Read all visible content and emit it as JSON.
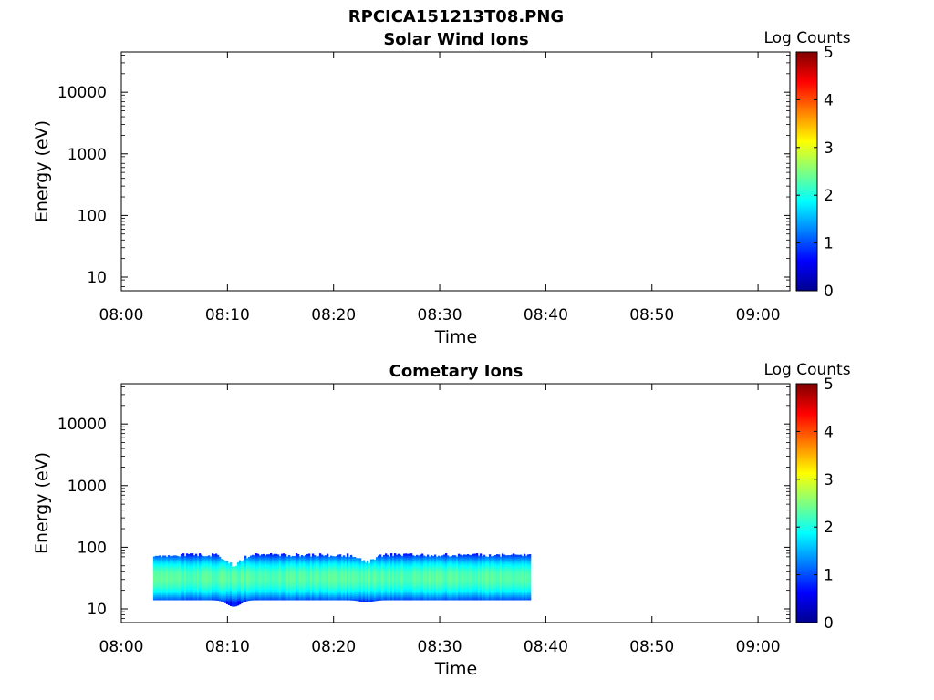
{
  "figure": {
    "title": "RPCICA151213T08.PNG"
  },
  "panels": [
    {
      "title": "Solar Wind Ions",
      "xlabel": "Time",
      "ylabel": "Energy (eV)",
      "colorbar_label": "Log Counts"
    },
    {
      "title": "Cometary Ions",
      "xlabel": "Time",
      "ylabel": "Energy (eV)",
      "colorbar_label": "Log Counts"
    }
  ],
  "chart_data": [
    {
      "type": "heatmap",
      "title": "Solar Wind Ions",
      "xlabel": "Time",
      "ylabel": "Energy (eV)",
      "x_ticks": [
        "08:00",
        "08:10",
        "08:20",
        "08:30",
        "08:40",
        "08:50",
        "09:00"
      ],
      "xlim": [
        "08:00",
        "09:03"
      ],
      "y_ticks": [
        10,
        100,
        1000,
        10000
      ],
      "y_tick_labels": [
        "10",
        "100",
        "1000",
        "10000"
      ],
      "ylim": [
        6,
        45000
      ],
      "yscale": "log",
      "colorbar": {
        "label": "Log Counts",
        "range": [
          0,
          5
        ],
        "ticks": [
          "0",
          "1",
          "2",
          "3",
          "4",
          "5"
        ],
        "colormap": "jet"
      },
      "data": []
    },
    {
      "type": "heatmap",
      "title": "Cometary Ions",
      "xlabel": "Time",
      "ylabel": "Energy (eV)",
      "x_ticks": [
        "08:00",
        "08:10",
        "08:20",
        "08:30",
        "08:40",
        "08:50",
        "09:00"
      ],
      "xlim": [
        "08:00",
        "09:03"
      ],
      "y_ticks": [
        10,
        100,
        1000,
        10000
      ],
      "y_tick_labels": [
        "10",
        "100",
        "1000",
        "10000"
      ],
      "ylim": [
        6,
        45000
      ],
      "yscale": "log",
      "colorbar": {
        "label": "Log Counts",
        "range": [
          0,
          5
        ],
        "ticks": [
          "0",
          "1",
          "2",
          "3",
          "4",
          "5"
        ],
        "colormap": "jet"
      },
      "data": {
        "time_start": "08:03",
        "time_end": "08:38.5",
        "energy_min_ev": 14,
        "energy_max_ev": 80,
        "peak_energy_ev": 32,
        "peak_log_counts": 2.3,
        "edge_log_counts": 0.7,
        "energy_dips": [
          {
            "time": "08:10.5",
            "lower_ev": 11,
            "upper_ev": 55
          },
          {
            "time": "08:23",
            "lower_ev": 13,
            "upper_ev": 62
          }
        ]
      }
    }
  ]
}
